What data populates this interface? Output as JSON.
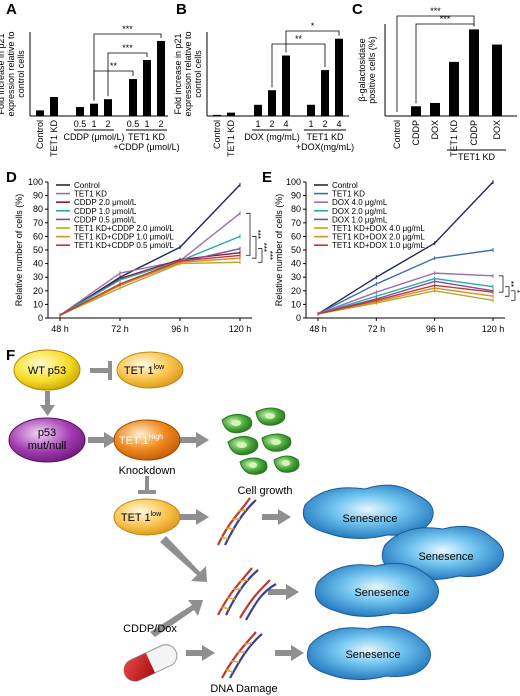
{
  "panels": {
    "A": "A",
    "B": "B",
    "C": "C",
    "D": "D",
    "E": "E",
    "F": "F"
  },
  "chart_data": [
    {
      "type": "bar",
      "panel": "A",
      "ylabel": "Fold increase in p21 expression relative to control cells",
      "ylim": [
        0,
        75
      ],
      "yticks": [],
      "categories": [
        "Control",
        "TET1 KD",
        "0.5",
        "1",
        "2",
        "0.5",
        "1",
        "2"
      ],
      "group_labels": [
        "CDDP (μmol/L)",
        "TET1 KD +CDDP (μmol/L)"
      ],
      "values": [
        5,
        17,
        8,
        11,
        15,
        33,
        50,
        67
      ],
      "significance": [
        "**",
        "***",
        "***"
      ]
    },
    {
      "type": "bar",
      "panel": "B",
      "ylabel": "Fold increase in p21 expression relative to control cells",
      "ylim": [
        0,
        75
      ],
      "yticks": [],
      "categories": [
        "Control",
        "TET1 KD",
        "1",
        "2",
        "4",
        "1",
        "2",
        "4"
      ],
      "group_labels": [
        "DOX (mg/mL)",
        "TET1 KD +DOX(mg/mL)"
      ],
      "values": [
        1,
        3,
        10,
        23,
        54,
        10,
        41,
        69
      ],
      "significance": [
        "**",
        "*"
      ]
    },
    {
      "type": "bar",
      "panel": "C",
      "ylabel": "β-galactosidase positive cells (%)",
      "ylim": [
        0,
        85
      ],
      "yticks": [],
      "categories": [
        "Control",
        "CDDP",
        "DOX",
        "TET1 KD",
        "CDDP",
        "DOX"
      ],
      "group_labels": [
        "TET1 KD"
      ],
      "values": [
        0,
        9,
        12,
        50,
        80,
        66
      ],
      "significance": [
        "***",
        "***"
      ]
    },
    {
      "type": "line",
      "panel": "D",
      "ylabel": "Relative number of cells (%)",
      "x": [
        "48 h",
        "72 h",
        "96 h",
        "120 h"
      ],
      "ylim": [
        0,
        100
      ],
      "yticks": [
        "0",
        "10",
        "20",
        "30",
        "40",
        "50",
        "60",
        "70",
        "80",
        "90",
        "100"
      ],
      "series": [
        {
          "name": "Control",
          "color": "#1c2a5a",
          "values": [
            2,
            30,
            52,
            98
          ]
        },
        {
          "name": "TET1 KD",
          "color": "#9a6fb0",
          "values": [
            2,
            33,
            42,
            77
          ]
        },
        {
          "name": "CDDP 2.0 μmol/L",
          "color": "#8b1a3c",
          "values": [
            2,
            29,
            43,
            48
          ]
        },
        {
          "name": "CDDP 1.0 μmol/L",
          "color": "#2aa8a8",
          "values": [
            2,
            28,
            42,
            60
          ]
        },
        {
          "name": "CDDP 0.5 μmol/L",
          "color": "#7a4fa0",
          "values": [
            2,
            24,
            41,
            51
          ]
        },
        {
          "name": "TET1 KD+CDDP 2.0 μmol/L",
          "color": "#b5a830",
          "values": [
            2,
            22,
            40,
            41
          ]
        },
        {
          "name": "TET1 KD+CDDP 1.0 μmol/L",
          "color": "#d98a2a",
          "values": [
            2,
            24,
            41,
            44
          ]
        },
        {
          "name": "TET1 KD+CDDP 0.5 μmol/L",
          "color": "#c0392b",
          "values": [
            2,
            25,
            42,
            46
          ]
        }
      ],
      "significance": [
        "***",
        "***",
        "***"
      ]
    },
    {
      "type": "line",
      "panel": "E",
      "ylabel": "Relative number of cells (%)",
      "x": [
        "48 h",
        "72 h",
        "96 h",
        "120 h"
      ],
      "ylim": [
        0,
        100
      ],
      "yticks": [
        "0",
        "10",
        "20",
        "30",
        "40",
        "50",
        "60",
        "70",
        "80",
        "90",
        "100"
      ],
      "series": [
        {
          "name": "Control",
          "color": "#1c2a5a",
          "values": [
            3,
            30,
            55,
            100
          ]
        },
        {
          "name": "TET1 KD",
          "color": "#3b6fb0",
          "values": [
            3,
            25,
            44,
            50
          ]
        },
        {
          "name": "DOX 4.0 μg/mL",
          "color": "#9a6fb0",
          "values": [
            3,
            19,
            33,
            31
          ]
        },
        {
          "name": "DOX 2.0 μg/mL",
          "color": "#2aa8a8",
          "values": [
            3,
            16,
            29,
            23
          ]
        },
        {
          "name": "DOX 1.0 μg/mL",
          "color": "#7a4fa0",
          "values": [
            3,
            14,
            27,
            20
          ]
        },
        {
          "name": "TET1 KD+DOX 4.0 μg/mL",
          "color": "#b5a830",
          "values": [
            3,
            11,
            20,
            13
          ]
        },
        {
          "name": "TET1 KD+DOX 2.0 μg/mL",
          "color": "#d98a2a",
          "values": [
            3,
            12,
            22,
            16
          ]
        },
        {
          "name": "TET1 KD+DOX 1.0 μg/mL",
          "color": "#c0392b",
          "values": [
            3,
            13,
            24,
            19
          ]
        }
      ],
      "significance": [
        "**",
        "*",
        "*"
      ]
    }
  ],
  "diagram": {
    "wt_p53": "WT p53",
    "tet1": "TET 1",
    "low": "low",
    "high": "High",
    "p53_mut_1": "p53",
    "p53_mut_2": "mut/null",
    "knockdown": "Knockdown",
    "cell_growth": "Cell growth",
    "senescence": "Senesence",
    "cddp_dox": "CDDP/Dox",
    "dna_damage": "DNA Damage"
  }
}
